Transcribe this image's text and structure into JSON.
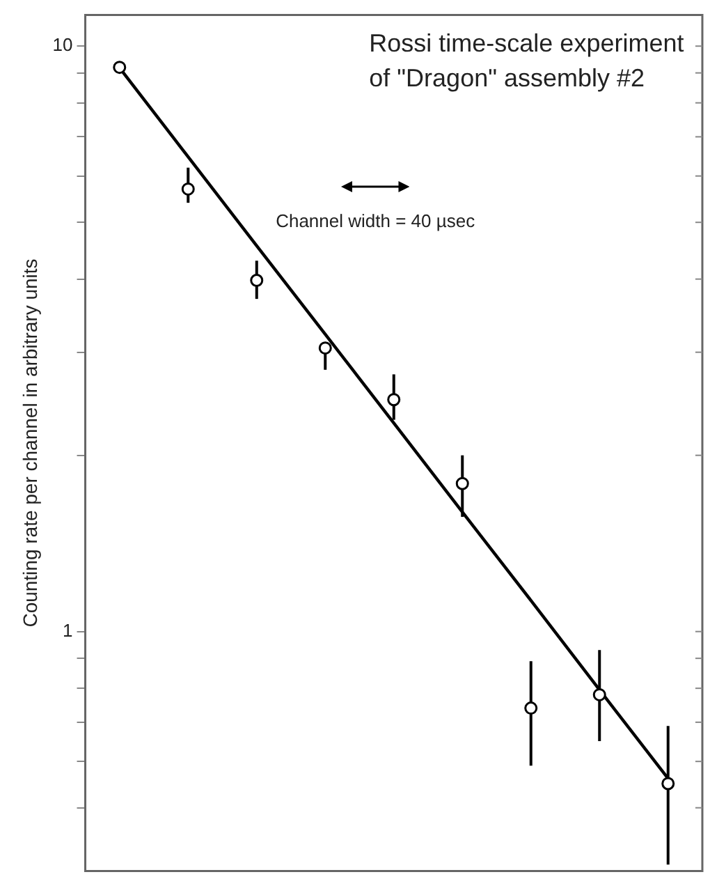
{
  "chart_data": {
    "type": "scatter",
    "title": "Rossi time-scale experiment of \"Dragon\" assembly #2",
    "ylabel": "Counting rate per channel in arbitrary units",
    "annotations": [
      "Channel width = 40 µsec"
    ],
    "log": "y",
    "grid": false,
    "legend": false,
    "tick_labels": "y",
    "categories": [
      null,
      null,
      null,
      null,
      null,
      null,
      null,
      null,
      null
    ],
    "ylim": [
      0.39,
      11.3
    ],
    "yticks": [
      {
        "value": 0.5,
        "label": null
      },
      {
        "value": 0.6,
        "label": null
      },
      {
        "value": 0.7,
        "label": null
      },
      {
        "value": 0.8,
        "label": null
      },
      {
        "value": 0.9,
        "label": null
      },
      1,
      {
        "value": 2,
        "label": null
      },
      {
        "value": 3,
        "label": null
      },
      {
        "value": 4,
        "label": null
      },
      {
        "value": 5,
        "label": null
      },
      {
        "value": 6,
        "label": null
      },
      {
        "value": 7,
        "label": null
      },
      {
        "value": 8,
        "label": null
      },
      {
        "value": 9,
        "label": null
      },
      10
    ],
    "series": [
      {
        "color": "#000000",
        "marker": "circle",
        "values": [
          9.2,
          5.7,
          3.98,
          3.05,
          2.49,
          1.79,
          0.74,
          0.78,
          0.55
        ],
        "errors": [
          null,
          [
            5.4,
            6.2
          ],
          [
            3.7,
            4.3
          ],
          [
            2.8,
            3.1
          ],
          [
            2.3,
            2.75
          ],
          [
            1.57,
            2.0
          ],
          [
            0.59,
            0.89
          ],
          [
            0.65,
            0.93
          ],
          [
            0.4,
            0.69
          ]
        ]
      },
      {
        "type": "line",
        "color": "#000000",
        "marker": "none",
        "line_style": "solid",
        "values": [
          9.18,
          6.47,
          4.56,
          3.22,
          2.27,
          1.6,
          1.13,
          0.795,
          0.561
        ]
      }
    ]
  }
}
